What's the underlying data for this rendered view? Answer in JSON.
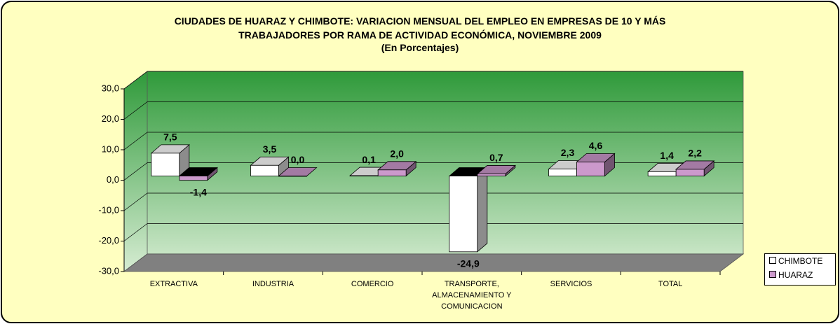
{
  "chart_data": {
    "type": "bar3d",
    "title": "CIUDADES DE HUARAZ Y CHIMBOTE: VARIACION MENSUAL DEL EMPLEO EN EMPRESAS DE 10 Y MÁS\nTRABAJADORES POR RAMA DE ACTIVIDAD ECONÓMICA, NOVIEMBRE 2009",
    "subtitle": "(En Porcentajes)",
    "categories": [
      "EXTRACTIVA",
      "INDUSTRIA",
      "COMERCIO",
      "TRANSPORTE,\nALMACENAMIENTO Y\nCOMUNICACION",
      "SERVICIOS",
      "TOTAL"
    ],
    "series": [
      {
        "name": "CHIMBOTE",
        "color": "#ffffff",
        "values": [
          7.5,
          3.5,
          0.1,
          -24.9,
          2.3,
          1.4
        ],
        "value_labels": [
          "7,5",
          "3,5",
          "0,1",
          "-24,9",
          "2,3",
          "1,4"
        ]
      },
      {
        "name": "HUARAZ",
        "color": "#cc99cc",
        "values": [
          -1.4,
          0.0,
          2.0,
          0.7,
          4.6,
          2.2
        ],
        "value_labels": [
          "-1,4",
          "0,0",
          "2,0",
          "0,7",
          "4,6",
          "2,2"
        ]
      }
    ],
    "ylim": [
      -30,
      30
    ],
    "yticks": [
      {
        "value": -30,
        "label": "-30,0"
      },
      {
        "value": -20,
        "label": "-20,0"
      },
      {
        "value": -10,
        "label": "-10,0"
      },
      {
        "value": 0,
        "label": "0,0"
      },
      {
        "value": 10,
        "label": "10,0"
      },
      {
        "value": 20,
        "label": "20,0"
      },
      {
        "value": 30,
        "label": "30,0"
      }
    ],
    "grid": true,
    "legend": "right"
  }
}
